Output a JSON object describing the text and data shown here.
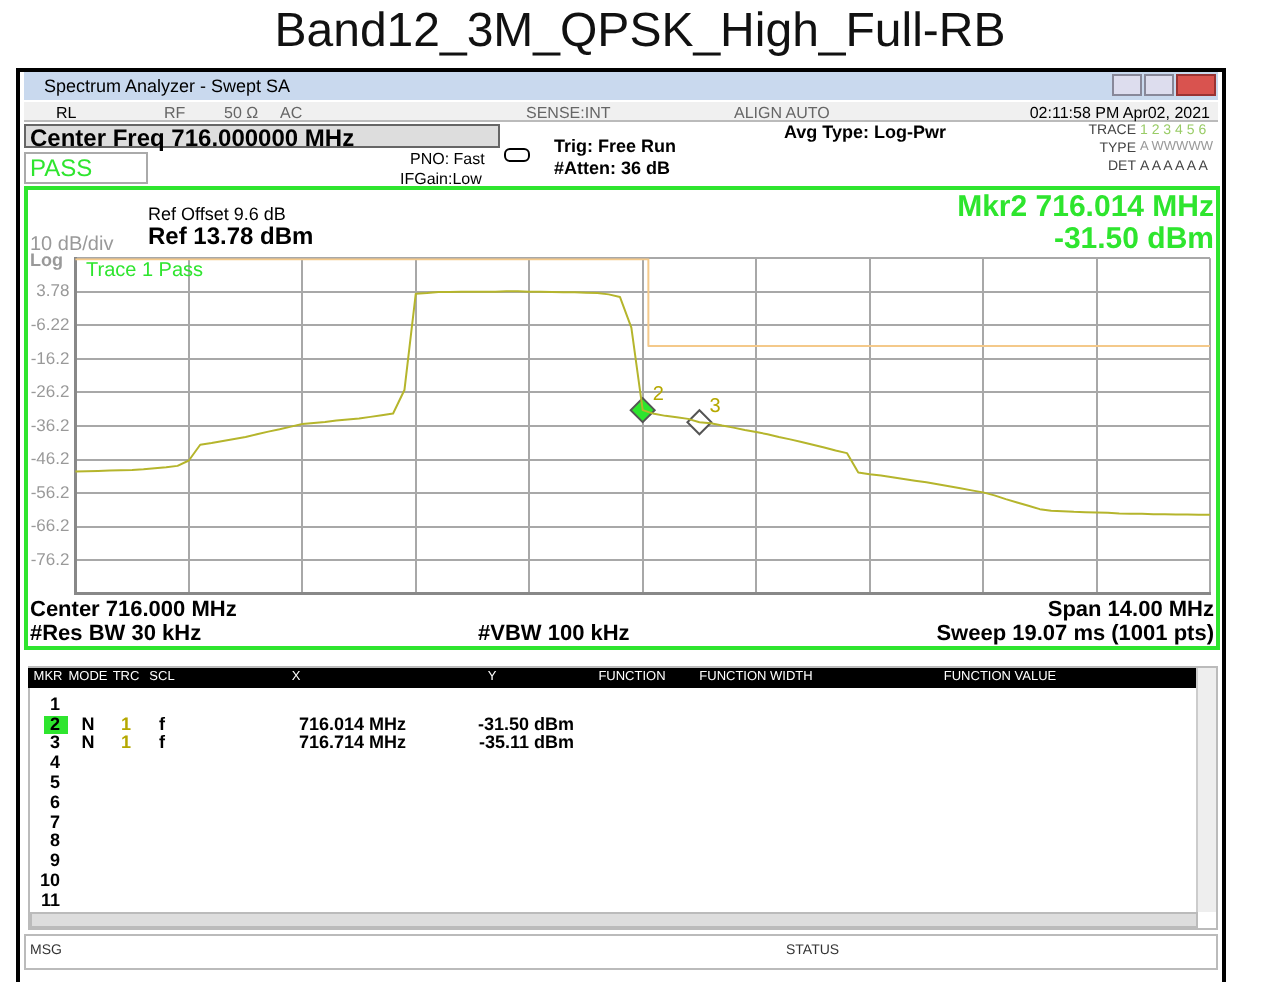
{
  "chart_data": {
    "type": "line",
    "title": "Band12_3M_QPSK_High_Full-RB",
    "annotations": [
      "Spectrum Analyzer - Swept SA",
      "RL",
      "RF",
      "50 Ω",
      "AC",
      "SENSE:INT",
      "ALIGN AUTO",
      "02:11:58 PM Apr02, 2021",
      "Center Freq 716.000000 MHz",
      "PASS",
      "PNO: Fast",
      "IFGain:Low",
      "Trig: Free Run",
      "#Atten: 36 dB",
      "Avg Type: Log-Pwr",
      "TRACE",
      "1 2 3 4 5 6",
      "TYPE",
      "A WWWWW",
      "DET",
      "A A A A A A",
      "Ref Offset 9.6 dB",
      "Ref 13.78 dBm",
      "10 dB/div",
      "Log",
      "Mkr2 716.014 MHz",
      "-31.50 dBm",
      "Trace 1 Pass",
      "Center 716.000 MHz",
      "Span 14.00 MHz",
      "#Res BW 30 kHz",
      "#VBW 100 kHz",
      "Sweep  19.07 ms (1001 pts)",
      "MKR",
      "MODE",
      "TRC",
      "SCL",
      "X",
      "Y",
      "FUNCTION",
      "FUNCTION WIDTH",
      "FUNCTION VALUE",
      "1",
      "2",
      "3",
      "4",
      "5",
      "6",
      "7",
      "8",
      "9",
      "10",
      "11",
      "N",
      "1",
      "f",
      "716.014 MHz",
      "-31.50 dBm",
      "N",
      "1",
      "f",
      "716.714 MHz",
      "-35.11 dBm",
      "MSG",
      "STATUS",
      "2",
      "3"
    ],
    "categories": [
      null,
      null,
      null,
      null,
      null,
      null,
      null,
      null,
      null,
      null,
      null,
      null,
      null,
      null,
      null,
      null,
      null,
      null,
      null,
      null,
      null,
      null,
      null,
      null,
      null,
      null,
      null,
      null,
      null,
      null,
      null,
      null,
      null,
      null,
      null,
      null,
      null,
      null,
      null,
      null,
      null,
      null,
      null,
      null,
      null,
      null,
      null,
      null,
      null,
      null,
      null,
      null,
      null,
      null,
      null,
      null,
      null,
      null,
      null,
      null,
      null,
      null,
      null,
      null,
      null,
      null,
      null,
      null,
      null,
      null,
      null,
      null,
      null,
      null,
      null,
      null,
      null,
      null,
      null,
      null,
      null,
      null,
      null,
      null,
      null,
      null,
      null,
      null,
      null,
      null,
      null,
      null,
      null,
      null,
      null,
      null,
      null,
      null,
      null,
      null,
      null
    ],
    "series": [
      {
        "color": "#b5b52c",
        "values": [
          -49.8,
          -49.7,
          -49.6,
          -49.5,
          -49.4,
          -49.3,
          -49.1,
          -48.8,
          -48.5,
          -48.1,
          -46.5,
          -41.8,
          -41.3,
          -40.7,
          -40.1,
          -39.5,
          -38.7,
          -37.9,
          -37.2,
          -36.4,
          -35.6,
          -35.3,
          -35.0,
          -34.6,
          -34.3,
          -34.0,
          -33.5,
          -33.0,
          -32.5,
          -25.5,
          3.2,
          3.4,
          3.7,
          3.7,
          3.8,
          3.8,
          3.8,
          3.8,
          3.9,
          3.9,
          3.8,
          3.8,
          3.7,
          3.6,
          3.6,
          3.5,
          3.4,
          3.0,
          2.2,
          -6.9,
          -31.5,
          -32.6,
          -33.2,
          -33.6,
          -34.1,
          -35.1,
          -35.4,
          -36.1,
          -36.7,
          -37.4,
          -38.0,
          -38.7,
          -39.5,
          -40.2,
          -41.0,
          -41.8,
          -42.6,
          -43.5,
          -44.3,
          -50.1,
          -50.6,
          -51.0,
          -51.5,
          -52.0,
          -52.5,
          -53.0,
          -53.6,
          -54.2,
          -54.8,
          -55.4,
          -56.0,
          -56.9,
          -58.0,
          -59.0,
          -60.0,
          -61.0,
          -61.5,
          -61.6,
          -61.8,
          -61.9,
          -62.0,
          -62.1,
          -62.3,
          -62.4,
          -62.4,
          -62.5,
          -62.5,
          -62.6,
          -62.6,
          -62.7,
          -62.7
        ]
      },
      {
        "type": "step",
        "color": "#f4c98a",
        "values": [
          13.5,
          13.5,
          13.5,
          13.5,
          13.5,
          13.5,
          13.5,
          13.5,
          13.5,
          13.5,
          13.5,
          13.5,
          13.5,
          13.5,
          13.5,
          13.5,
          13.5,
          13.5,
          13.5,
          13.5,
          13.5,
          13.5,
          13.5,
          13.5,
          13.5,
          13.5,
          13.5,
          13.5,
          13.5,
          13.5,
          13.5,
          13.5,
          13.5,
          13.5,
          13.5,
          13.5,
          13.5,
          13.5,
          13.5,
          13.5,
          13.5,
          13.5,
          13.5,
          13.5,
          13.5,
          13.5,
          13.5,
          13.5,
          13.5,
          13.5,
          13.5,
          -12.4,
          -12.4,
          -12.4,
          -12.4,
          -12.4,
          -12.4,
          -12.4,
          -12.4,
          -12.4,
          -12.4,
          -12.4,
          -12.4,
          -12.4,
          -12.4,
          -12.4,
          -12.4,
          -12.4,
          -12.4,
          -12.4,
          -12.4,
          -12.4,
          -12.4,
          -12.4,
          -12.4,
          -12.4,
          -12.4,
          -12.4,
          -12.4,
          -12.4,
          -12.4,
          -12.4,
          -12.4,
          -12.4,
          -12.4,
          -12.4,
          -12.4,
          -12.4,
          -12.4,
          -12.4,
          -12.4,
          -12.4,
          -12.4,
          -12.4,
          -12.4,
          -12.4,
          -12.4,
          -12.4,
          -12.4,
          -12.4,
          -12.4
        ]
      },
      {
        "type": "scatter",
        "marker": "diamond",
        "color": "#2ee52e",
        "values": [
          null,
          null,
          null,
          null,
          null,
          null,
          null,
          null,
          null,
          null,
          null,
          null,
          null,
          null,
          null,
          null,
          null,
          null,
          null,
          null,
          null,
          null,
          null,
          null,
          null,
          null,
          null,
          null,
          null,
          null,
          null,
          null,
          null,
          null,
          null,
          null,
          null,
          null,
          null,
          null,
          null,
          null,
          null,
          null,
          null,
          null,
          null,
          null,
          null,
          null,
          -31.5,
          null,
          null,
          null,
          null,
          null,
          null,
          null,
          null,
          null,
          null,
          null,
          null,
          null,
          null,
          null,
          null,
          null,
          null,
          null,
          null,
          null,
          null,
          null,
          null,
          null,
          null,
          null,
          null,
          null,
          null,
          null,
          null,
          null,
          null,
          null,
          null,
          null,
          null,
          null,
          null,
          null,
          null,
          null,
          null,
          null,
          null,
          null,
          null,
          null,
          null
        ]
      },
      {
        "type": "scatter",
        "marker": "diamond",
        "color": "#ffffff",
        "values": [
          null,
          null,
          null,
          null,
          null,
          null,
          null,
          null,
          null,
          null,
          null,
          null,
          null,
          null,
          null,
          null,
          null,
          null,
          null,
          null,
          null,
          null,
          null,
          null,
          null,
          null,
          null,
          null,
          null,
          null,
          null,
          null,
          null,
          null,
          null,
          null,
          null,
          null,
          null,
          null,
          null,
          null,
          null,
          null,
          null,
          null,
          null,
          null,
          null,
          null,
          null,
          null,
          null,
          null,
          null,
          -35.11,
          null,
          null,
          null,
          null,
          null,
          null,
          null,
          null,
          null,
          null,
          null,
          null,
          null,
          null,
          null,
          null,
          null,
          null,
          null,
          null,
          null,
          null,
          null,
          null,
          null,
          null,
          null,
          null,
          null,
          null,
          null,
          null,
          null,
          null,
          null,
          null,
          null,
          null,
          null,
          null,
          null,
          null,
          null,
          null,
          null
        ]
      }
    ],
    "ylim": [
      -86.22,
      13.78
    ],
    "yticks": [
      {
        "value": 13.78,
        "label": null
      },
      3.78,
      -6.22,
      {
        "value": -16.22,
        "label": "-16.2"
      },
      {
        "value": -26.22,
        "label": "-26.2"
      },
      {
        "value": -36.22,
        "label": "-36.2"
      },
      {
        "value": -46.22,
        "label": "-46.2"
      },
      {
        "value": -56.22,
        "label": "-56.2"
      },
      {
        "value": -66.22,
        "label": "-66.2"
      },
      {
        "value": -76.22,
        "label": "-76.2"
      },
      {
        "value": -86.22,
        "label": null
      }
    ],
    "tick_labels": "y",
    "grid": true
  }
}
